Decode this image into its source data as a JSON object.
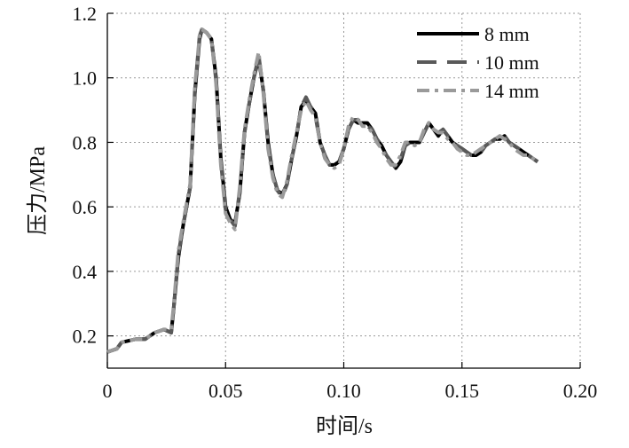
{
  "chart_data": {
    "type": "line",
    "title": "",
    "xlabel": "时间/s",
    "ylabel": "压力/MPa",
    "xlim": [
      0,
      0.2
    ],
    "ylim": [
      0.1,
      1.2
    ],
    "xticks": [
      0,
      0.05,
      0.1,
      0.15,
      0.2
    ],
    "xtick_labels": [
      "0",
      "0.05",
      "0.10",
      "0.15",
      "0.20"
    ],
    "yticks": [
      0.2,
      0.4,
      0.6,
      0.8,
      1.0,
      1.2
    ],
    "ytick_labels": [
      "0.2",
      "0.4",
      "0.6",
      "0.8",
      "1.0",
      "1.2"
    ],
    "grid": true,
    "legend_position": "top-right",
    "x": [
      0,
      0.004,
      0.006,
      0.012,
      0.016,
      0.02,
      0.024,
      0.027,
      0.028,
      0.03,
      0.032,
      0.035,
      0.037,
      0.039,
      0.04,
      0.042,
      0.044,
      0.046,
      0.048,
      0.05,
      0.052,
      0.054,
      0.056,
      0.058,
      0.06,
      0.062,
      0.064,
      0.066,
      0.068,
      0.07,
      0.072,
      0.074,
      0.076,
      0.078,
      0.08,
      0.082,
      0.084,
      0.086,
      0.088,
      0.09,
      0.092,
      0.094,
      0.096,
      0.098,
      0.1,
      0.102,
      0.104,
      0.106,
      0.108,
      0.11,
      0.112,
      0.114,
      0.116,
      0.118,
      0.12,
      0.122,
      0.124,
      0.126,
      0.128,
      0.13,
      0.132,
      0.134,
      0.136,
      0.138,
      0.14,
      0.142,
      0.144,
      0.146,
      0.148,
      0.15,
      0.152,
      0.154,
      0.156,
      0.158,
      0.16,
      0.162,
      0.164,
      0.166,
      0.168,
      0.17,
      0.172,
      0.174,
      0.176,
      0.178,
      0.18,
      0.182
    ],
    "series": [
      {
        "name": "8 mm",
        "color": "#000000",
        "dash": "solid",
        "values": [
          0.15,
          0.16,
          0.18,
          0.19,
          0.19,
          0.21,
          0.22,
          0.21,
          0.28,
          0.44,
          0.54,
          0.66,
          0.95,
          1.12,
          1.15,
          1.14,
          1.12,
          1.0,
          0.75,
          0.6,
          0.56,
          0.55,
          0.64,
          0.83,
          0.92,
          1.0,
          1.06,
          0.96,
          0.8,
          0.7,
          0.65,
          0.64,
          0.67,
          0.75,
          0.82,
          0.91,
          0.93,
          0.91,
          0.89,
          0.8,
          0.76,
          0.73,
          0.73,
          0.74,
          0.78,
          0.84,
          0.87,
          0.86,
          0.86,
          0.86,
          0.84,
          0.81,
          0.79,
          0.76,
          0.74,
          0.72,
          0.74,
          0.79,
          0.8,
          0.8,
          0.8,
          0.83,
          0.86,
          0.84,
          0.82,
          0.84,
          0.82,
          0.8,
          0.79,
          0.78,
          0.77,
          0.76,
          0.76,
          0.77,
          0.79,
          0.8,
          0.81,
          0.81,
          0.82,
          0.8,
          0.79,
          0.78,
          0.77,
          0.76,
          0.75,
          0.74
        ]
      },
      {
        "name": "10 mm",
        "color": "#595959",
        "dash": "long-dash",
        "values": [
          0.15,
          0.16,
          0.18,
          0.19,
          0.19,
          0.21,
          0.22,
          0.21,
          0.28,
          0.45,
          0.54,
          0.66,
          0.96,
          1.13,
          1.15,
          1.14,
          1.12,
          0.99,
          0.74,
          0.59,
          0.56,
          0.54,
          0.65,
          0.83,
          0.92,
          1.0,
          1.07,
          0.96,
          0.79,
          0.7,
          0.65,
          0.63,
          0.67,
          0.75,
          0.82,
          0.91,
          0.94,
          0.91,
          0.88,
          0.8,
          0.76,
          0.73,
          0.73,
          0.74,
          0.78,
          0.84,
          0.87,
          0.87,
          0.86,
          0.85,
          0.84,
          0.81,
          0.79,
          0.76,
          0.74,
          0.72,
          0.75,
          0.79,
          0.8,
          0.8,
          0.8,
          0.83,
          0.86,
          0.84,
          0.83,
          0.84,
          0.82,
          0.8,
          0.79,
          0.78,
          0.77,
          0.76,
          0.76,
          0.77,
          0.79,
          0.8,
          0.81,
          0.81,
          0.82,
          0.8,
          0.79,
          0.78,
          0.77,
          0.76,
          0.75,
          0.74
        ]
      },
      {
        "name": "14 mm",
        "color": "#9a9a9a",
        "dash": "dash-dot",
        "values": [
          0.15,
          0.16,
          0.18,
          0.19,
          0.19,
          0.21,
          0.22,
          0.22,
          0.29,
          0.46,
          0.55,
          0.67,
          0.97,
          1.13,
          1.15,
          1.14,
          1.12,
          0.98,
          0.73,
          0.58,
          0.55,
          0.53,
          0.66,
          0.84,
          0.93,
          1.01,
          1.08,
          0.95,
          0.78,
          0.69,
          0.64,
          0.63,
          0.68,
          0.76,
          0.83,
          0.9,
          0.93,
          0.9,
          0.88,
          0.8,
          0.75,
          0.73,
          0.72,
          0.73,
          0.78,
          0.85,
          0.88,
          0.87,
          0.85,
          0.85,
          0.83,
          0.8,
          0.78,
          0.75,
          0.73,
          0.73,
          0.76,
          0.8,
          0.8,
          0.79,
          0.8,
          0.84,
          0.86,
          0.84,
          0.83,
          0.83,
          0.81,
          0.8,
          0.78,
          0.77,
          0.76,
          0.76,
          0.77,
          0.78,
          0.79,
          0.8,
          0.81,
          0.82,
          0.81,
          0.8,
          0.78,
          0.77,
          0.76,
          0.76,
          0.75,
          0.74
        ]
      }
    ]
  }
}
